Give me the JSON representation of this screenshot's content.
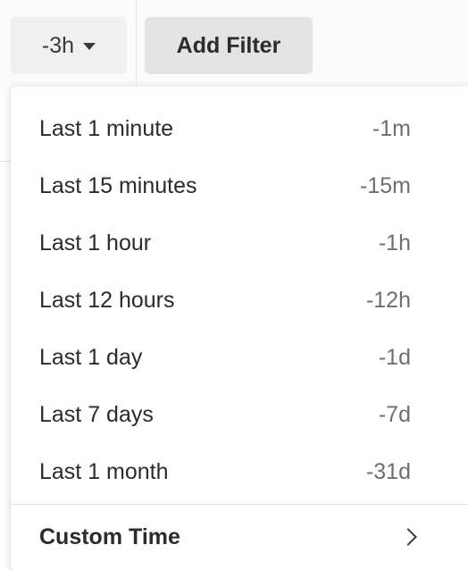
{
  "toolbar": {
    "time_range_label": "-3h",
    "add_filter_label": "Add Filter"
  },
  "dropdown": {
    "options": [
      {
        "label": "Last 1 minute",
        "code": "-1m"
      },
      {
        "label": "Last 15 minutes",
        "code": "-15m"
      },
      {
        "label": "Last 1 hour",
        "code": "-1h"
      },
      {
        "label": "Last 12 hours",
        "code": "-12h"
      },
      {
        "label": "Last 1 day",
        "code": "-1d"
      },
      {
        "label": "Last 7 days",
        "code": "-7d"
      },
      {
        "label": "Last 1 month",
        "code": "-31d"
      }
    ],
    "custom_label": "Custom Time",
    "custom_icon": "chevron-right-icon"
  },
  "colors": {
    "toolbar_bg": "#fafafa",
    "time_button_bg": "#f0f0f0",
    "filter_button_bg": "#e3e3e3",
    "text": "#2b2b2b",
    "code_text": "#6e6e6e"
  }
}
